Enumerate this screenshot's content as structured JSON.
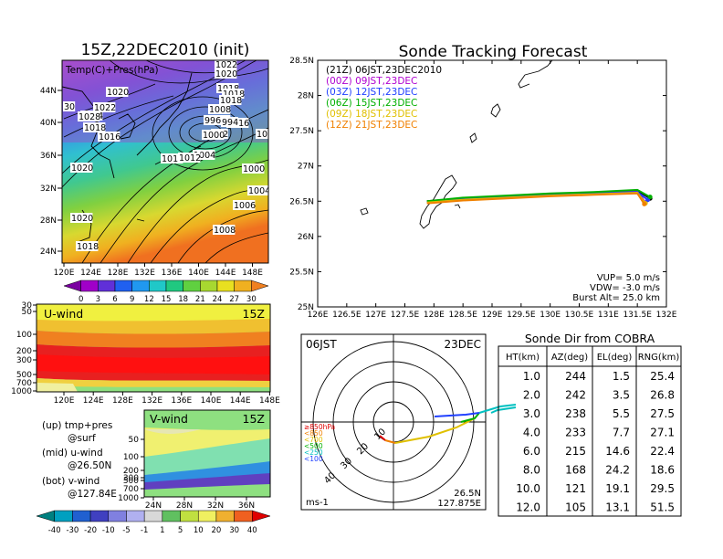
{
  "left_map": {
    "title": "15Z,22DEC2010 (init)",
    "overlay_label": "Temp(C)+Pres(hPa)",
    "lat_ticks": [
      "44N",
      "40N",
      "36N",
      "32N",
      "28N",
      "24N"
    ],
    "lon_ticks": [
      "120E",
      "124E",
      "128E",
      "132E",
      "136E",
      "140E",
      "144E",
      "148E"
    ],
    "pressure_labels": [
      "1022",
      "1020",
      "1020",
      "1018",
      "1016",
      "1018",
      "1018",
      "1024",
      "1022",
      "1018",
      "1016",
      "1008",
      "1006",
      "996",
      "994",
      "1002",
      "1000",
      "992",
      "1004",
      "1014",
      "1012",
      "1000",
      "1004",
      "1006",
      "1008",
      "1020",
      "1020",
      "1018",
      "1028",
      "30"
    ],
    "colorbar_ticks": [
      "0",
      "3",
      "6",
      "9",
      "12",
      "15",
      "18",
      "21",
      "24",
      "27",
      "30"
    ]
  },
  "uwind_panel": {
    "label": "U-wind",
    "time": "15Z",
    "p_ticks": [
      "30",
      "50",
      "100",
      "200",
      "300",
      "500",
      "700",
      "1000"
    ],
    "lon_ticks": [
      "120E",
      "124E",
      "128E",
      "132E",
      "136E",
      "140E",
      "144E",
      "148E"
    ]
  },
  "vwind_panel": {
    "label": "V-wind",
    "time": "15Z",
    "p_ticks": [
      "50",
      "100",
      "200",
      "300",
      "500",
      "700",
      "1000"
    ],
    "lat_ticks": [
      "24N",
      "28N",
      "32N",
      "36N"
    ]
  },
  "side_notes": {
    "up_1": "(up) tmp+pres",
    "up_2": "@surf",
    "mid_1": "(mid) u-wind",
    "mid_2": "@26.50N",
    "bot_1": "(bot) v-wind",
    "bot_2": "@127.84E"
  },
  "wind_colorbar_ticks": [
    "-40",
    "-30",
    "-20",
    "-10",
    "-5",
    "-1",
    "1",
    "5",
    "10",
    "20",
    "30",
    "40"
  ],
  "tracking": {
    "title": "Sonde Tracking Forecast",
    "lat_ticks": [
      "28.5N",
      "28N",
      "27.5N",
      "27N",
      "26.5N",
      "26N",
      "25.5N",
      "25N"
    ],
    "lon_ticks": [
      "126E",
      "126.5E",
      "127E",
      "127.5E",
      "128E",
      "128.5E",
      "129E",
      "129.5E",
      "130E",
      "130.5E",
      "131E",
      "131.5E",
      "132E"
    ],
    "legend": [
      {
        "text": "(21Z) 06JST,23DEC2010",
        "color": "#000000"
      },
      {
        "text": "(00Z) 09JST,23DEC",
        "color": "#b000d0"
      },
      {
        "text": "(03Z) 12JST,23DEC",
        "color": "#2040ff"
      },
      {
        "text": "(06Z) 15JST,23DEC",
        "color": "#00b000"
      },
      {
        "text": "(09Z) 18JST,23DEC",
        "color": "#e0c000"
      },
      {
        "text": "(12Z) 21JST,23DEC",
        "color": "#f08000"
      }
    ],
    "params": [
      "VUP=  5.0 m/s",
      "VDW= -3.0 m/s",
      "Burst Alt= 25.0 km"
    ]
  },
  "polar": {
    "left_label": "06JST",
    "right_label": "23DEC",
    "range_labels": [
      "10",
      "20",
      "30",
      "40"
    ],
    "level_legend": [
      {
        "text": "≥850hPa",
        "color": "#e00000"
      },
      {
        "text": "<850",
        "color": "#f08000"
      },
      {
        "text": "<700",
        "color": "#e0c000"
      },
      {
        "text": "<500",
        "color": "#00b000"
      },
      {
        "text": "<250",
        "color": "#00c0c0"
      },
      {
        "text": "<100",
        "color": "#2040ff"
      }
    ],
    "unit": "ms-1",
    "lat": "26.5N",
    "lon": "127.875E"
  },
  "sonde_table": {
    "title": "Sonde Dir from COBRA",
    "headers": [
      "HT(km)",
      "AZ(deg)",
      "EL(deg)",
      "RNG(km)"
    ],
    "rows": [
      [
        "1.0",
        "244",
        "1.5",
        "25.4"
      ],
      [
        "2.0",
        "242",
        "3.5",
        "26.8"
      ],
      [
        "3.0",
        "238",
        "5.5",
        "27.5"
      ],
      [
        "4.0",
        "233",
        "7.7",
        "27.1"
      ],
      [
        "6.0",
        "215",
        "14.6",
        "22.4"
      ],
      [
        "8.0",
        "168",
        "24.2",
        "18.6"
      ],
      [
        "10.0",
        "121",
        "19.1",
        "29.5"
      ],
      [
        "12.0",
        "105",
        "13.1",
        "51.5"
      ]
    ]
  },
  "chart_data": [
    {
      "type": "heatmap",
      "title": "15Z,22DEC2010 (init)",
      "subtitle": "Temp(C)+Pres(hPa)",
      "x": {
        "range": [
          120,
          150
        ]
      },
      "y": {
        "range": [
          22,
          48
        ]
      },
      "colorbar": [
        0,
        3,
        6,
        9,
        12,
        15,
        18,
        21,
        24,
        27,
        30
      ]
    },
    {
      "type": "heatmap",
      "title": "U-wind",
      "x": {
        "range": [
          120,
          150
        ]
      },
      "y": {
        "range": [
          1000,
          30
        ],
        "scale": "log"
      }
    },
    {
      "type": "heatmap",
      "title": "V-wind",
      "x": {
        "range": [
          22,
          38
        ]
      },
      "y": {
        "range": [
          1000,
          30
        ],
        "scale": "log"
      }
    },
    {
      "type": "line",
      "title": "Sonde Tracking Forecast",
      "xlim": [
        126,
        132
      ],
      "ylim": [
        25,
        28.5
      ],
      "series": [
        {
          "name": "(21Z) 06JST,23DEC2010",
          "x": [
            127.88,
            128.5,
            129.25,
            130.0,
            130.75,
            131.5,
            131.72
          ],
          "y": [
            26.5,
            26.54,
            26.57,
            26.6,
            26.62,
            26.65,
            26.54
          ]
        },
        {
          "name": "(00Z) 09JST,23DEC",
          "x": [
            127.88,
            128.5,
            129.25,
            130.0,
            130.75,
            131.5,
            131.64
          ],
          "y": [
            26.48,
            26.53,
            26.56,
            26.59,
            26.61,
            26.64,
            26.48
          ]
        },
        {
          "name": "(03Z) 12JST,23DEC",
          "x": [
            127.88,
            128.5,
            129.25,
            130.0,
            130.75,
            131.5,
            131.68
          ],
          "y": [
            26.49,
            26.53,
            26.56,
            26.59,
            26.61,
            26.63,
            26.52
          ]
        },
        {
          "name": "(06Z) 15JST,23DEC",
          "x": [
            127.88,
            128.5,
            129.25,
            130.0,
            130.75,
            131.5,
            131.72
          ],
          "y": [
            26.5,
            26.55,
            26.58,
            26.61,
            26.63,
            26.66,
            26.56
          ]
        },
        {
          "name": "(09Z) 18JST,23DEC",
          "x": [
            127.88,
            128.5,
            129.25,
            130.0,
            130.75,
            131.5,
            131.64
          ],
          "y": [
            26.48,
            26.52,
            26.55,
            26.58,
            26.6,
            26.62,
            26.47
          ]
        },
        {
          "name": "(12Z) 21JST,23DEC",
          "x": [
            127.88,
            128.5,
            129.25,
            130.0,
            130.75,
            131.5,
            131.62
          ],
          "y": [
            26.47,
            26.51,
            26.54,
            26.57,
            26.59,
            26.61,
            26.46
          ]
        }
      ]
    },
    {
      "type": "table",
      "title": "Sonde Dir from COBRA",
      "columns": [
        "HT(km)",
        "AZ(deg)",
        "EL(deg)",
        "RNG(km)"
      ],
      "rows": [
        [
          1.0,
          244,
          1.5,
          25.4
        ],
        [
          2.0,
          242,
          3.5,
          26.8
        ],
        [
          3.0,
          238,
          5.5,
          27.5
        ],
        [
          4.0,
          233,
          7.7,
          27.1
        ],
        [
          6.0,
          215,
          14.6,
          22.4
        ],
        [
          8.0,
          168,
          24.2,
          18.6
        ],
        [
          10.0,
          121,
          19.1,
          29.5
        ],
        [
          12.0,
          105,
          13.1,
          51.5
        ]
      ]
    }
  ]
}
